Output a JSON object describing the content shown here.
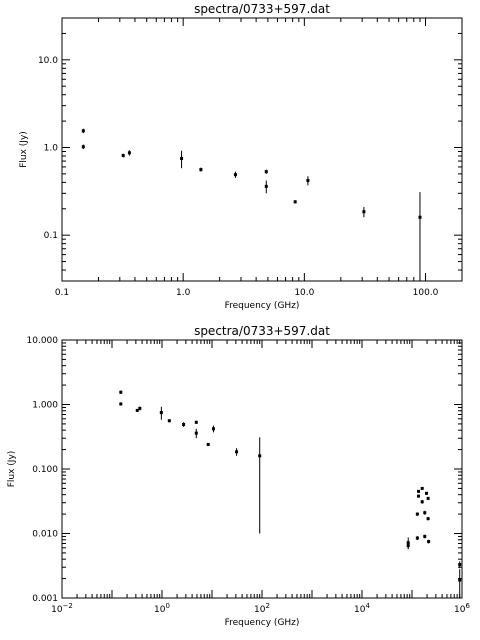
{
  "chart_data": [
    {
      "type": "scatter",
      "title": "spectra/0733+597.dat",
      "xlabel": "Frequency (GHz)",
      "ylabel": "Flux (Jy)",
      "xscale": "log",
      "yscale": "log",
      "xlim": [
        0.1,
        200
      ],
      "ylim": [
        0.03,
        30
      ],
      "x_ticks": [
        {
          "value": 0.1,
          "label": "0.1"
        },
        {
          "value": 1,
          "label": "1.0"
        },
        {
          "value": 10,
          "label": "10.0"
        },
        {
          "value": 100,
          "label": "100.0"
        }
      ],
      "y_ticks": [
        {
          "value": 0.1,
          "label": "0.1"
        },
        {
          "value": 1,
          "label": "1.0"
        },
        {
          "value": 10,
          "label": "10.0"
        }
      ],
      "points": [
        {
          "x": 0.15,
          "y": 1.55,
          "err": 0.09
        },
        {
          "x": 0.15,
          "y": 1.02,
          "err": 0.06
        },
        {
          "x": 0.32,
          "y": 0.81,
          "err": 0.04
        },
        {
          "x": 0.36,
          "y": 0.87,
          "err": 0.06
        },
        {
          "x": 0.97,
          "y": 0.75,
          "err": 0.17
        },
        {
          "x": 1.4,
          "y": 0.56,
          "err": 0.03
        },
        {
          "x": 2.7,
          "y": 0.49,
          "err": 0.04
        },
        {
          "x": 4.85,
          "y": 0.53,
          "err": 0.03
        },
        {
          "x": 4.85,
          "y": 0.36,
          "err": 0.06
        },
        {
          "x": 8.4,
          "y": 0.24,
          "err": 0.01
        },
        {
          "x": 10.7,
          "y": 0.42,
          "err": 0.05
        },
        {
          "x": 31,
          "y": 0.185,
          "err": 0.025
        },
        {
          "x": 90,
          "y": 0.16,
          "err": 0.15
        }
      ],
      "grid": false
    },
    {
      "type": "scatter",
      "title": "spectra/0733+597.dat",
      "xlabel": "Frequency (GHz)",
      "ylabel": "Flux (Jy)",
      "xscale": "log",
      "yscale": "log",
      "xlim": [
        0.01,
        1000000
      ],
      "ylim": [
        0.001,
        10
      ],
      "x_ticks": [
        {
          "value": 0.01,
          "label": "10",
          "exp": "−2"
        },
        {
          "value": 1,
          "label": "10",
          "exp": "0"
        },
        {
          "value": 100,
          "label": "10",
          "exp": "2"
        },
        {
          "value": 10000,
          "label": "10",
          "exp": "4"
        },
        {
          "value": 1000000,
          "label": "10",
          "exp": "6"
        }
      ],
      "y_ticks": [
        {
          "value": 0.001,
          "label": "0.001"
        },
        {
          "value": 0.01,
          "label": "0.010"
        },
        {
          "value": 0.1,
          "label": "0.100"
        },
        {
          "value": 1,
          "label": "1.000"
        },
        {
          "value": 10,
          "label": "10.000"
        }
      ],
      "points": [
        {
          "x": 0.15,
          "y": 1.55,
          "err": 0.09
        },
        {
          "x": 0.15,
          "y": 1.02,
          "err": 0.06
        },
        {
          "x": 0.32,
          "y": 0.81,
          "err": 0.04
        },
        {
          "x": 0.36,
          "y": 0.87,
          "err": 0.06
        },
        {
          "x": 0.97,
          "y": 0.75,
          "err": 0.17
        },
        {
          "x": 1.4,
          "y": 0.56,
          "err": 0.03
        },
        {
          "x": 2.7,
          "y": 0.49,
          "err": 0.04
        },
        {
          "x": 4.85,
          "y": 0.53,
          "err": 0.03
        },
        {
          "x": 4.85,
          "y": 0.36,
          "err": 0.06
        },
        {
          "x": 8.4,
          "y": 0.24,
          "err": 0.01
        },
        {
          "x": 10.7,
          "y": 0.42,
          "err": 0.05
        },
        {
          "x": 31,
          "y": 0.185,
          "err": 0.025
        },
        {
          "x": 90,
          "y": 0.16,
          "err": 0.15
        },
        {
          "x": 84000,
          "y": 0.0072,
          "err": 0.0015
        },
        {
          "x": 84000,
          "y": 0.0065,
          "err": 0.0006
        },
        {
          "x": 128000,
          "y": 0.0085,
          "err": 0.0006
        },
        {
          "x": 128000,
          "y": 0.02,
          "err": 0.0012
        },
        {
          "x": 135000,
          "y": 0.038,
          "err": 0.002
        },
        {
          "x": 135000,
          "y": 0.045,
          "err": 0.002
        },
        {
          "x": 160000,
          "y": 0.031,
          "err": 0.002
        },
        {
          "x": 160000,
          "y": 0.05,
          "err": 0.002
        },
        {
          "x": 180000,
          "y": 0.021,
          "err": 0.0015
        },
        {
          "x": 180000,
          "y": 0.009,
          "err": 0.0006
        },
        {
          "x": 195000,
          "y": 0.042,
          "err": 0.002
        },
        {
          "x": 210000,
          "y": 0.035,
          "err": 0.002
        },
        {
          "x": 210000,
          "y": 0.017,
          "err": 0.001
        },
        {
          "x": 215000,
          "y": 0.0075,
          "err": 0.0005
        },
        {
          "x": 900000,
          "y": 0.0033,
          "err": 0.0004
        },
        {
          "x": 900000,
          "y": 0.0019,
          "err": 0.0009
        }
      ],
      "grid": false
    }
  ]
}
